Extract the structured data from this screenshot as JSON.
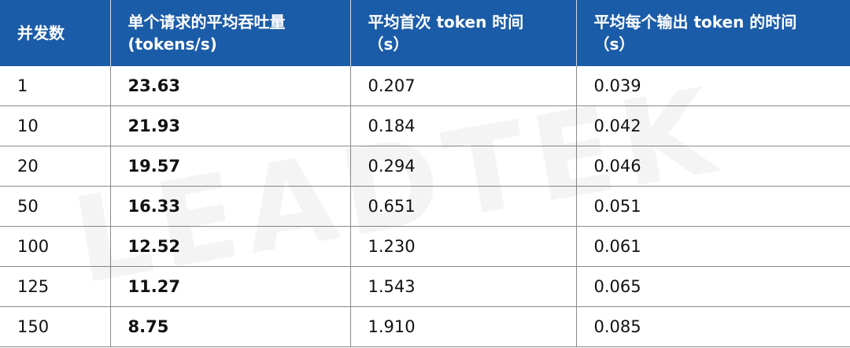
{
  "table": {
    "header": [
      [
        "并发数"
      ],
      [
        "单个请求的平均吞吐量",
        "(tokens/s)"
      ],
      [
        "平均首次 token 时间",
        "（s）"
      ],
      [
        "平均每个输出 token 的时间",
        "（s）"
      ]
    ],
    "rows": [
      [
        "1",
        "23.63",
        "0.207",
        "0.039"
      ],
      [
        "10",
        "21.93",
        "0.184",
        "0.042"
      ],
      [
        "20",
        "19.57",
        "0.294",
        "0.046"
      ],
      [
        "50",
        "16.33",
        "0.651",
        "0.051"
      ],
      [
        "100",
        "12.52",
        "1.230",
        "0.061"
      ],
      [
        "125",
        "11.27",
        "1.543",
        "0.065"
      ],
      [
        "150",
        "8.75",
        "1.910",
        "0.085"
      ]
    ]
  },
  "watermark": "LEADTEK"
}
